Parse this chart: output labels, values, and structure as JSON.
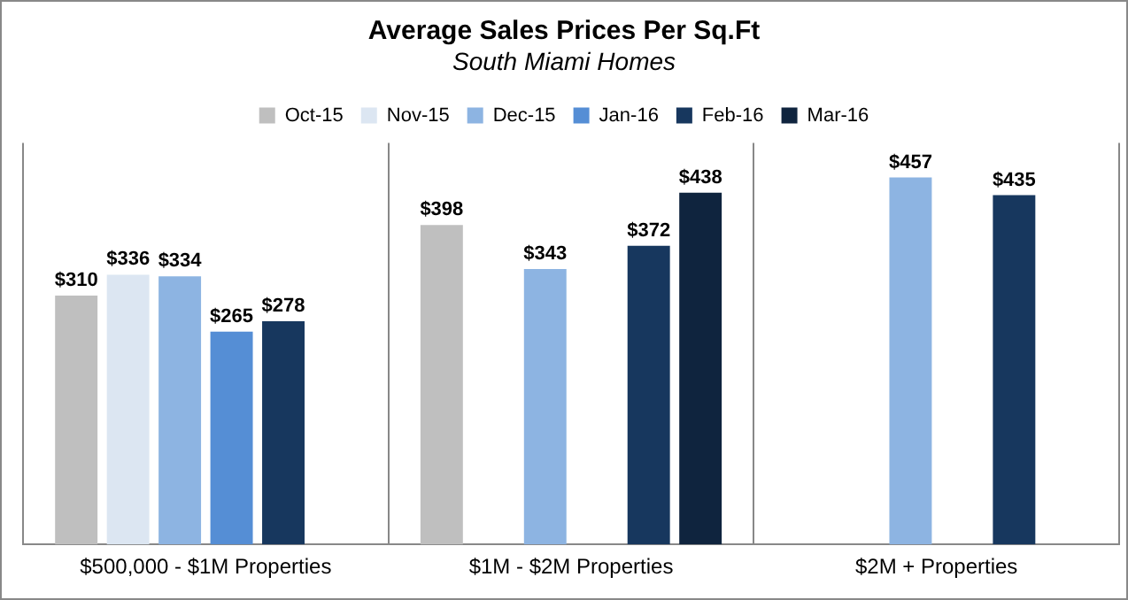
{
  "chart_data": {
    "type": "bar",
    "title": "Average Sales Prices Per Sq.Ft",
    "subtitle": "South Miami Homes",
    "categories": [
      "$500,000 - $1M Properties",
      "$1M - $2M Properties",
      "$2M + Properties"
    ],
    "series": [
      {
        "name": "Oct-15",
        "color": "#bfbfbf",
        "values": [
          310,
          398,
          null
        ],
        "value_labels": [
          "$310",
          "$398",
          null
        ]
      },
      {
        "name": "Nov-15",
        "color": "#dce6f2",
        "values": [
          336,
          null,
          null
        ],
        "value_labels": [
          "$336",
          null,
          null
        ]
      },
      {
        "name": "Dec-15",
        "color": "#8db4e2",
        "values": [
          334,
          343,
          457
        ],
        "value_labels": [
          "$334",
          "$343",
          "$457"
        ]
      },
      {
        "name": "Jan-16",
        "color": "#558ed5",
        "values": [
          265,
          null,
          null
        ],
        "value_labels": [
          "$265",
          null,
          null
        ]
      },
      {
        "name": "Feb-16",
        "color": "#17375e",
        "values": [
          278,
          372,
          435
        ],
        "value_labels": [
          "$278",
          "$372",
          "$435"
        ]
      },
      {
        "name": "Mar-16",
        "color": "#0f243e",
        "values": [
          null,
          438,
          null
        ],
        "value_labels": [
          null,
          "$438",
          null
        ]
      }
    ],
    "ylim": [
      0,
      500
    ],
    "tick_labels": "x",
    "grid": "x",
    "legend": "top"
  }
}
